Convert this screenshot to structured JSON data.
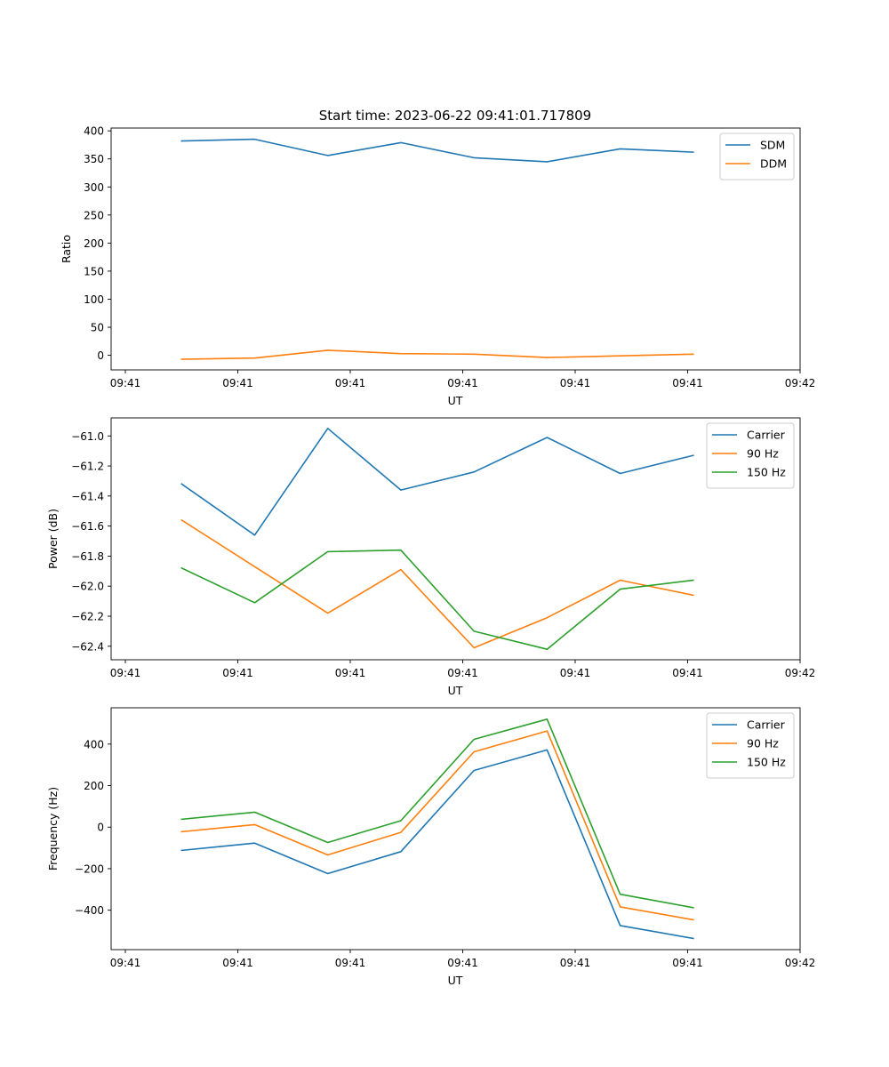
{
  "title": "Start time: 2023-06-22 09:41:01.717809",
  "colors": {
    "blue": "#1f77b4",
    "orange": "#ff7f0e",
    "green": "#2ca02c"
  },
  "chart_data": [
    {
      "type": "line",
      "xlabel": "UT",
      "ylabel": "Ratio",
      "xtick_labels": [
        "09:41",
        "09:41",
        "09:41",
        "09:41",
        "09:41",
        "09:41",
        "09:42"
      ],
      "ytick_values": [
        0,
        50,
        100,
        150,
        200,
        250,
        300,
        350,
        400
      ],
      "ylim": [
        -26,
        405
      ],
      "grid": false,
      "legend": "top-right",
      "x_index": [
        0.5,
        1.15,
        1.8,
        2.45,
        3.1,
        3.75,
        4.4,
        5.05
      ],
      "series": [
        {
          "name": "SDM",
          "color": "#1f77b4",
          "values": [
            382,
            385,
            356,
            379,
            352,
            345,
            368,
            362
          ]
        },
        {
          "name": "DDM",
          "color": "#ff7f0e",
          "values": [
            -7,
            -5,
            9,
            3,
            2,
            -4,
            -1,
            2
          ]
        }
      ]
    },
    {
      "type": "line",
      "xlabel": "UT",
      "ylabel": "Power (dB)",
      "xtick_labels": [
        "09:41",
        "09:41",
        "09:41",
        "09:41",
        "09:41",
        "09:41",
        "09:42"
      ],
      "ytick_values": [
        -62.4,
        -62.2,
        -62.0,
        -61.8,
        -61.6,
        -61.4,
        -61.2,
        -61.0
      ],
      "ytick_labels": [
        "−62.4",
        "−62.2",
        "−62.0",
        "−61.8",
        "−61.6",
        "−61.4",
        "−61.2",
        "−61.0"
      ],
      "ylim": [
        -62.49,
        -60.88
      ],
      "grid": false,
      "legend": "top-right",
      "x_index": [
        0.5,
        1.15,
        1.8,
        2.45,
        3.1,
        3.75,
        4.4,
        5.05
      ],
      "series": [
        {
          "name": "Carrier",
          "color": "#1f77b4",
          "values": [
            -61.32,
            -61.66,
            -60.95,
            -61.36,
            -61.24,
            -61.01,
            -61.25,
            -61.13
          ]
        },
        {
          "name": "90 Hz",
          "color": "#ff7f0e",
          "values": [
            -61.56,
            -61.87,
            -62.18,
            -61.89,
            -62.41,
            -62.21,
            -61.96,
            -62.06
          ]
        },
        {
          "name": "150 Hz",
          "color": "#2ca02c",
          "values": [
            -61.88,
            -62.11,
            -61.77,
            -61.76,
            -62.3,
            -62.42,
            -62.02,
            -61.96
          ]
        }
      ]
    },
    {
      "type": "line",
      "xlabel": "UT",
      "ylabel": "Frequency (Hz)",
      "xtick_labels": [
        "09:41",
        "09:41",
        "09:41",
        "09:41",
        "09:41",
        "09:41",
        "09:42"
      ],
      "ytick_values": [
        -400,
        -200,
        0,
        200,
        400
      ],
      "ytick_labels": [
        "−400",
        "−200",
        "0",
        "200",
        "400"
      ],
      "ylim": [
        -590,
        575
      ],
      "grid": false,
      "legend": "top-right",
      "x_index": [
        0.5,
        1.15,
        1.8,
        2.45,
        3.1,
        3.75,
        4.4,
        5.05
      ],
      "series": [
        {
          "name": "Carrier",
          "color": "#1f77b4",
          "values": [
            -112,
            -77,
            -224,
            -118,
            273,
            372,
            -474,
            -536
          ]
        },
        {
          "name": "90 Hz",
          "color": "#ff7f0e",
          "values": [
            -22,
            12,
            -134,
            -25,
            363,
            463,
            -384,
            -446
          ]
        },
        {
          "name": "150 Hz",
          "color": "#2ca02c",
          "values": [
            38,
            72,
            -74,
            31,
            423,
            520,
            -323,
            -388
          ]
        }
      ]
    }
  ]
}
